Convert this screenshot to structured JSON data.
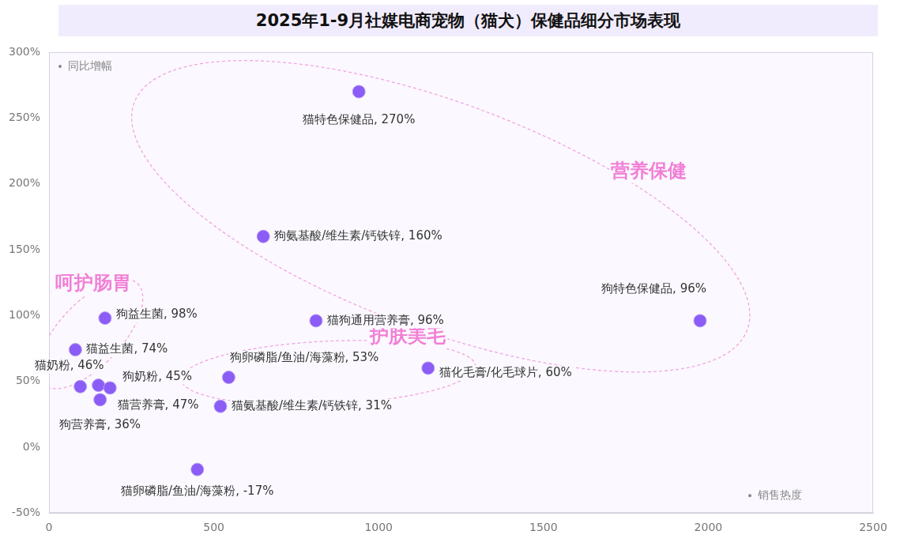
{
  "chart_data": {
    "type": "scatter",
    "title": "2025年1-9月社媒电商宠物（猫犬）保健品细分市场表现",
    "x_label": "销售热度",
    "y_label": "同比增幅",
    "x": [
      940,
      650,
      1975,
      810,
      170,
      80,
      95,
      150,
      185,
      155,
      545,
      1150,
      520,
      450
    ],
    "values": [
      270,
      160,
      96,
      96,
      98,
      74,
      46,
      47,
      45,
      36,
      53,
      60,
      31,
      -17
    ],
    "value_labels": [
      "猫特色保健品, 270%",
      "狗氨基酸/维生素/钙铁锌, 160%",
      "狗特色保健品, 96%",
      "猫狗通用营养膏, 96%",
      "狗益生菌, 98%",
      "猫益生菌, 74%",
      "猫奶粉, 46%",
      "猫营养膏, 47%",
      "狗奶粉, 45%",
      "狗营养膏, 36%",
      "狗卵磷脂/鱼油/海藻粉, 53%",
      "猫化毛膏/化毛球片, 60%",
      "猫氨基酸/维生素/钙铁锌, 31%",
      "猫卵磷脂/鱼油/海藻粉, -17%"
    ],
    "data_labels": true,
    "color": "#8b5cf6",
    "marker": "circle",
    "annotations": [
      {
        "text": "营养保健",
        "members": [
          0,
          1,
          2
        ]
      },
      {
        "text": "呵护肠胃",
        "members": [
          4,
          5
        ]
      },
      {
        "text": "护肤美毛",
        "members": [
          10,
          11
        ]
      }
    ],
    "xlim": [
      0,
      2500
    ],
    "xticks": [
      0,
      500,
      1000,
      1500,
      2000,
      2500
    ],
    "ylim": [
      -50,
      300
    ],
    "yticks": [
      {
        "value": -50,
        "label": "-50%"
      },
      {
        "value": 0,
        "label": "0%"
      },
      {
        "value": 50,
        "label": "50%"
      },
      {
        "value": 100,
        "label": "100%"
      },
      {
        "value": 150,
        "label": "150%"
      },
      {
        "value": 200,
        "label": "200%"
      },
      {
        "value": 250,
        "label": "250%"
      },
      {
        "value": 300,
        "label": "300%"
      }
    ],
    "grid": false
  }
}
